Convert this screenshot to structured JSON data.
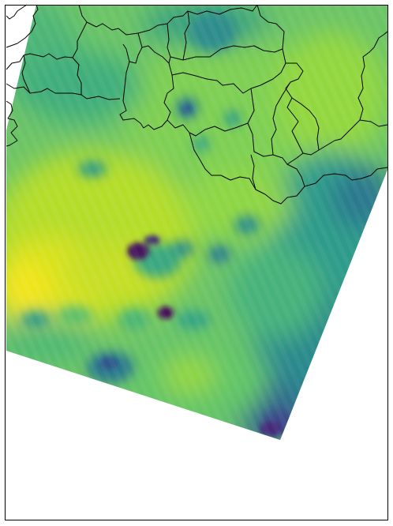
{
  "map": {
    "type": "gridded-field-map",
    "colormap": "viridis",
    "colors": {
      "background": "#ffffff",
      "frame": "#000000",
      "boundary": "#000000",
      "low": "#440154",
      "mid_low": "#31688e",
      "mid": "#35b779",
      "high": "#a0da39",
      "max": "#fde725"
    },
    "swath_visible": true,
    "boundaries_visible": true
  }
}
